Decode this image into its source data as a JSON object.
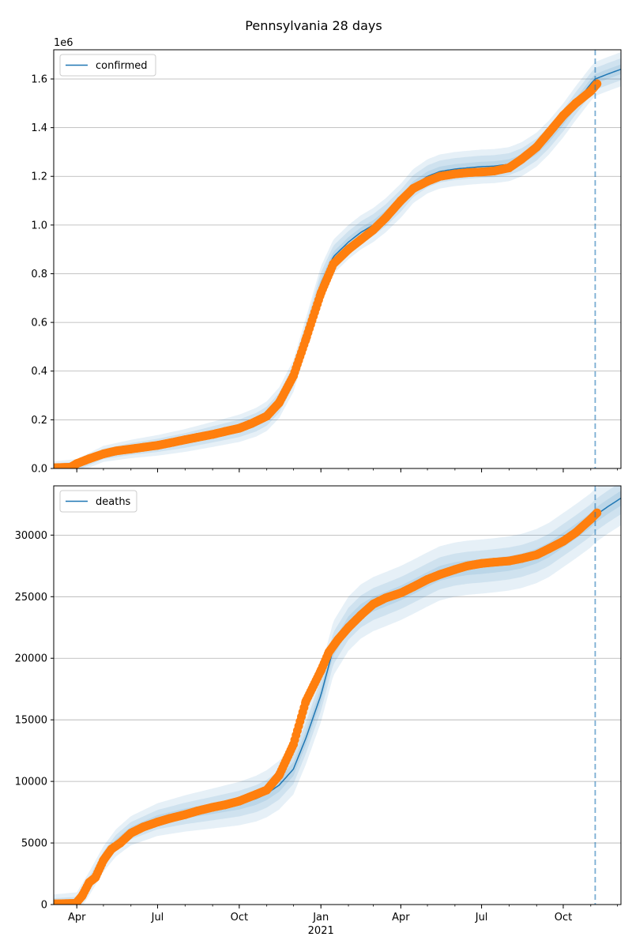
{
  "suptitle": "Pennsylvania 28 days",
  "x_axis": {
    "ticks": [
      {
        "date": "2020-04-01",
        "label": "Apr"
      },
      {
        "date": "2020-07-01",
        "label": "Jul"
      },
      {
        "date": "2020-10-01",
        "label": "Oct"
      },
      {
        "date": "2021-01-01",
        "label": "Jan"
      },
      {
        "date": "2021-04-01",
        "label": "Apr"
      },
      {
        "date": "2021-07-01",
        "label": "Jul"
      },
      {
        "date": "2021-10-01",
        "label": "Oct"
      }
    ],
    "year_label": "2021",
    "range": [
      "2020-03-06",
      "2021-12-05"
    ],
    "forecast_start": "2021-11-06"
  },
  "colors": {
    "model": "#1f77b4",
    "observed": "#ff7f0e",
    "band": "#1f77b4",
    "grid": "#b0b0b0",
    "vline": "#1f77b4"
  },
  "chart_data": [
    {
      "type": "line",
      "legend": [
        "confirmed"
      ],
      "offset_label": "1e6",
      "ylim": [
        0,
        1.72
      ],
      "yticks": [
        0,
        0.2,
        0.4,
        0.6,
        0.8,
        1.0,
        1.2,
        1.4,
        1.6
      ],
      "ytick_labels": [
        "0.0",
        "0.2",
        "0.4",
        "0.6",
        "0.8",
        "1.0",
        "1.2",
        "1.4",
        "1.6"
      ],
      "grid": "horizontal",
      "legend_position": "upper-left",
      "model": {
        "x": [
          "2020-03-06",
          "2020-04-01",
          "2020-05-01",
          "2020-06-01",
          "2020-07-01",
          "2020-08-01",
          "2020-09-01",
          "2020-10-01",
          "2020-10-20",
          "2020-11-01",
          "2020-11-15",
          "2020-12-01",
          "2020-12-15",
          "2021-01-01",
          "2021-01-15",
          "2021-02-01",
          "2021-02-15",
          "2021-03-01",
          "2021-03-15",
          "2021-04-01",
          "2021-04-15",
          "2021-05-01",
          "2021-05-15",
          "2021-06-01",
          "2021-06-15",
          "2021-07-01",
          "2021-07-15",
          "2021-08-01",
          "2021-08-15",
          "2021-09-01",
          "2021-09-15",
          "2021-10-01",
          "2021-10-15",
          "2021-11-01",
          "2021-11-06",
          "2021-11-20",
          "2021-12-05"
        ],
        "y": [
          0.005,
          0.01,
          0.06,
          0.08,
          0.095,
          0.115,
          0.14,
          0.165,
          0.19,
          0.215,
          0.27,
          0.38,
          0.55,
          0.76,
          0.87,
          0.93,
          0.97,
          1.0,
          1.04,
          1.1,
          1.16,
          1.2,
          1.22,
          1.23,
          1.235,
          1.24,
          1.242,
          1.25,
          1.27,
          1.31,
          1.36,
          1.43,
          1.5,
          1.58,
          1.6,
          1.62,
          1.64
        ]
      },
      "band_widths": [
        0.02,
        0.045,
        0.07
      ],
      "observed": {
        "x": [
          "2020-03-06",
          "2020-03-25",
          "2020-04-01",
          "2020-04-15",
          "2020-05-01",
          "2020-05-15",
          "2020-06-01",
          "2020-06-15",
          "2020-07-01",
          "2020-07-15",
          "2020-08-01",
          "2020-08-15",
          "2020-09-01",
          "2020-09-15",
          "2020-10-01",
          "2020-10-15",
          "2020-11-01",
          "2020-11-15",
          "2020-12-01",
          "2020-12-15",
          "2021-01-01",
          "2021-01-15",
          "2021-02-01",
          "2021-02-15",
          "2021-03-01",
          "2021-03-15",
          "2021-04-01",
          "2021-04-15",
          "2021-05-01",
          "2021-05-15",
          "2021-06-01",
          "2021-06-15",
          "2021-07-01",
          "2021-07-15",
          "2021-08-01",
          "2021-08-15",
          "2021-09-01",
          "2021-09-15",
          "2021-10-01",
          "2021-10-15",
          "2021-11-01",
          "2021-11-08"
        ],
        "y": [
          0.003,
          0.005,
          0.02,
          0.04,
          0.06,
          0.072,
          0.08,
          0.087,
          0.095,
          0.105,
          0.118,
          0.128,
          0.14,
          0.152,
          0.165,
          0.185,
          0.215,
          0.27,
          0.38,
          0.53,
          0.72,
          0.84,
          0.9,
          0.94,
          0.98,
          1.03,
          1.1,
          1.15,
          1.18,
          1.2,
          1.21,
          1.215,
          1.218,
          1.222,
          1.235,
          1.27,
          1.32,
          1.38,
          1.45,
          1.5,
          1.55,
          1.58
        ]
      }
    },
    {
      "type": "line",
      "legend": [
        "deaths"
      ],
      "ylim": [
        0,
        34000
      ],
      "yticks": [
        0,
        5000,
        10000,
        15000,
        20000,
        25000,
        30000
      ],
      "ytick_labels": [
        "0",
        "5000",
        "10000",
        "15000",
        "20000",
        "25000",
        "30000"
      ],
      "grid": "horizontal",
      "legend_position": "upper-left",
      "model": {
        "x": [
          "2020-03-06",
          "2020-04-01",
          "2020-04-15",
          "2020-05-01",
          "2020-05-15",
          "2020-06-01",
          "2020-07-01",
          "2020-08-01",
          "2020-09-01",
          "2020-10-01",
          "2020-10-20",
          "2020-11-01",
          "2020-11-15",
          "2020-12-01",
          "2020-12-15",
          "2021-01-01",
          "2021-01-15",
          "2021-02-01",
          "2021-02-15",
          "2021-03-01",
          "2021-03-15",
          "2021-04-01",
          "2021-04-15",
          "2021-05-01",
          "2021-05-15",
          "2021-06-01",
          "2021-06-15",
          "2021-07-01",
          "2021-07-15",
          "2021-08-01",
          "2021-08-15",
          "2021-09-01",
          "2021-09-15",
          "2021-10-01",
          "2021-10-15",
          "2021-11-01",
          "2021-11-06",
          "2021-11-20",
          "2021-12-05"
        ],
        "y": [
          50,
          100,
          1700,
          3700,
          5000,
          6000,
          6900,
          7400,
          7800,
          8200,
          8600,
          9000,
          9700,
          11000,
          13500,
          17000,
          20800,
          22800,
          23800,
          24400,
          24800,
          25300,
          25800,
          26400,
          26900,
          27200,
          27350,
          27450,
          27550,
          27700,
          27900,
          28300,
          28800,
          29600,
          30300,
          31200,
          31600,
          32300,
          33000
        ]
      },
      "band_widths": [
        600,
        1300,
        2200
      ],
      "observed": {
        "x": [
          "2020-03-06",
          "2020-03-31",
          "2020-04-07",
          "2020-04-15",
          "2020-04-22",
          "2020-05-01",
          "2020-05-10",
          "2020-05-20",
          "2020-06-01",
          "2020-06-15",
          "2020-07-01",
          "2020-07-15",
          "2020-08-01",
          "2020-08-15",
          "2020-09-01",
          "2020-09-15",
          "2020-10-01",
          "2020-10-15",
          "2020-11-01",
          "2020-11-15",
          "2020-12-01",
          "2020-12-15",
          "2021-01-01",
          "2021-01-10",
          "2021-01-20",
          "2021-02-01",
          "2021-02-15",
          "2021-03-01",
          "2021-03-15",
          "2021-04-01",
          "2021-04-15",
          "2021-05-01",
          "2021-05-15",
          "2021-06-01",
          "2021-06-15",
          "2021-07-01",
          "2021-07-15",
          "2021-08-01",
          "2021-08-15",
          "2021-09-01",
          "2021-09-15",
          "2021-10-01",
          "2021-10-15",
          "2021-11-01",
          "2021-11-08"
        ],
        "y": [
          50,
          100,
          700,
          1800,
          2200,
          3600,
          4500,
          5000,
          5800,
          6300,
          6700,
          7000,
          7300,
          7600,
          7900,
          8100,
          8400,
          8800,
          9300,
          10500,
          13000,
          16500,
          19000,
          20500,
          21500,
          22500,
          23500,
          24400,
          24900,
          25300,
          25800,
          26400,
          26800,
          27200,
          27500,
          27700,
          27800,
          27900,
          28100,
          28400,
          28900,
          29500,
          30200,
          31300,
          31800
        ]
      }
    }
  ]
}
